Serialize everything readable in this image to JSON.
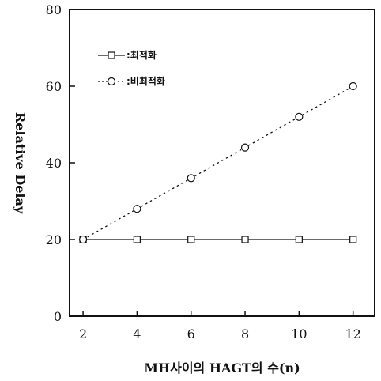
{
  "chart_data": {
    "type": "line",
    "xlabel": "MH사이의 HAGT의 수(n)",
    "ylabel": "Relative Delay",
    "x": [
      2,
      4,
      6,
      8,
      10,
      12
    ],
    "xticks": [
      2,
      4,
      6,
      8,
      10,
      12
    ],
    "yticks": [
      0,
      20,
      40,
      60,
      80
    ],
    "xlim": [
      1.5,
      12.8
    ],
    "ylim": [
      0,
      80
    ],
    "grid": false,
    "legend_position": "upper-left",
    "series": [
      {
        "name": "최적화",
        "marker": "square",
        "line_style": "solid",
        "values": [
          20,
          20,
          20,
          20,
          20,
          20
        ]
      },
      {
        "name": "비최적화",
        "marker": "circle",
        "line_style": "dotted",
        "values": [
          20,
          28,
          36,
          44,
          52,
          60
        ]
      }
    ]
  },
  "legend": {
    "items": [
      {
        "label": ":최적화"
      },
      {
        "label": ":비최적화"
      }
    ]
  },
  "colors": {
    "ink": "#111111",
    "background": "#ffffff"
  }
}
